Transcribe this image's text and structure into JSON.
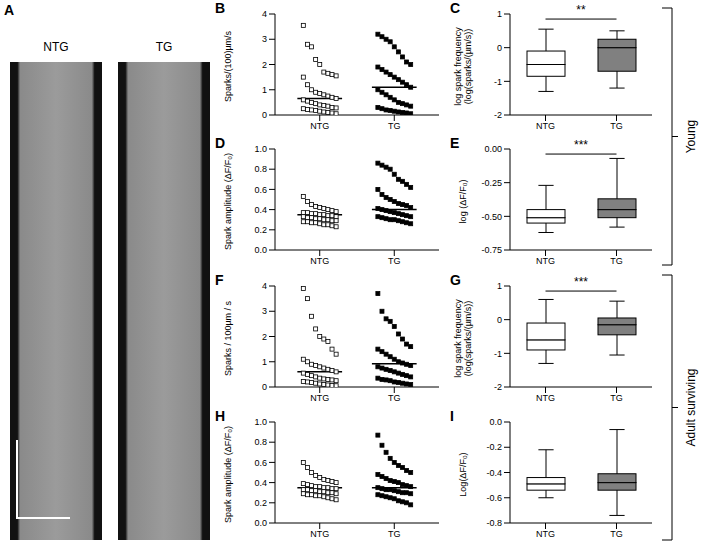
{
  "image_panel": {
    "panel_label": "A",
    "labels": [
      "NTG",
      "TG"
    ]
  },
  "brackets": [
    "Young",
    "Adult surviving"
  ],
  "chart_data": [
    {
      "panel_label": "B",
      "type": "dotplot",
      "ylabel": [
        "Sparks/(100)µm/s"
      ],
      "ylim": [
        0,
        4
      ],
      "yticks": [
        0,
        1,
        2,
        3,
        4
      ],
      "groups": [
        {
          "name": "NTG",
          "marker": "open_square",
          "color": "#000000",
          "mean": 0.65,
          "values": [
            3.55,
            2.8,
            2.7,
            2.2,
            2.0,
            1.7,
            1.65,
            1.6,
            1.55,
            1.5,
            1.2,
            1.0,
            0.9,
            0.85,
            0.8,
            0.75,
            0.7,
            0.65,
            0.6,
            0.55,
            0.5,
            0.45,
            0.4,
            0.38,
            0.35,
            0.3,
            0.28,
            0.25,
            0.22,
            0.2,
            0.18,
            0.15,
            0.12,
            0.1,
            0.08,
            0.05
          ]
        },
        {
          "name": "TG",
          "marker": "filled_square",
          "color": "#000000",
          "mean": 1.1,
          "values": [
            3.2,
            3.1,
            3.0,
            2.9,
            2.7,
            2.5,
            2.3,
            2.1,
            2.0,
            1.9,
            1.8,
            1.7,
            1.6,
            1.5,
            1.4,
            1.3,
            1.2,
            1.1,
            1.0,
            0.9,
            0.8,
            0.7,
            0.6,
            0.5,
            0.45,
            0.4,
            0.35,
            0.3,
            0.25,
            0.2,
            0.18,
            0.15,
            0.12,
            0.1,
            0.08,
            0.05
          ]
        }
      ]
    },
    {
      "panel_label": "C",
      "type": "box",
      "ylabel": [
        "log spark frequency",
        "(log(sparks/(µm/s))"
      ],
      "ylim": [
        -2,
        1
      ],
      "yticks": [
        -2,
        -1,
        0,
        1
      ],
      "annotation": "**",
      "groups": [
        {
          "name": "NTG",
          "color": "#ffffff",
          "min": -1.3,
          "q1": -0.85,
          "median": -0.5,
          "q3": -0.1,
          "max": 0.55
        },
        {
          "name": "TG",
          "color": "#808080",
          "min": -1.2,
          "q1": -0.7,
          "median": 0.0,
          "q3": 0.25,
          "max": 0.5
        }
      ]
    },
    {
      "panel_label": "D",
      "type": "dotplot",
      "ylabel": [
        "Spark amplitude (ΔF/F₀)"
      ],
      "ylim": [
        0,
        1
      ],
      "yticks": [
        {
          "value": 0,
          "label": "0.0"
        },
        0.2,
        0.4,
        0.6,
        0.8,
        {
          "value": 1,
          "label": "1.0"
        }
      ],
      "groups": [
        {
          "name": "NTG",
          "marker": "open_square",
          "color": "#000000",
          "mean": 0.35,
          "values": [
            0.53,
            0.48,
            0.45,
            0.43,
            0.42,
            0.41,
            0.4,
            0.39,
            0.38,
            0.37,
            0.37,
            0.36,
            0.36,
            0.35,
            0.35,
            0.34,
            0.34,
            0.33,
            0.33,
            0.32,
            0.32,
            0.31,
            0.31,
            0.3,
            0.3,
            0.29,
            0.29,
            0.28,
            0.28,
            0.27,
            0.27,
            0.26,
            0.25,
            0.25,
            0.24,
            0.23
          ]
        },
        {
          "name": "TG",
          "marker": "filled_square",
          "color": "#000000",
          "mean": 0.4,
          "values": [
            0.86,
            0.84,
            0.82,
            0.8,
            0.75,
            0.7,
            0.68,
            0.65,
            0.62,
            0.6,
            0.55,
            0.52,
            0.5,
            0.48,
            0.46,
            0.45,
            0.44,
            0.42,
            0.41,
            0.4,
            0.39,
            0.38,
            0.37,
            0.36,
            0.35,
            0.34,
            0.33,
            0.33,
            0.32,
            0.31,
            0.3,
            0.3,
            0.29,
            0.28,
            0.27,
            0.26
          ]
        }
      ]
    },
    {
      "panel_label": "E",
      "type": "box",
      "ylabel": [
        "log (ΔF/F₀)"
      ],
      "ylim": [
        -0.75,
        0
      ],
      "yticks": [
        {
          "value": -0.75,
          "label": "-0.75"
        },
        {
          "value": -0.5,
          "label": "-0.50"
        },
        {
          "value": -0.25,
          "label": "-0.25"
        },
        {
          "value": 0,
          "label": "0.00"
        }
      ],
      "annotation": "***",
      "groups": [
        {
          "name": "NTG",
          "color": "#ffffff",
          "min": -0.62,
          "q1": -0.55,
          "median": -0.51,
          "q3": -0.45,
          "max": -0.27
        },
        {
          "name": "TG",
          "color": "#808080",
          "min": -0.58,
          "q1": -0.51,
          "median": -0.45,
          "q3": -0.37,
          "max": -0.07
        }
      ]
    },
    {
      "panel_label": "F",
      "type": "dotplot",
      "ylabel": [
        "Sparks / 100µm / s"
      ],
      "ylim": [
        0,
        4
      ],
      "yticks": [
        0,
        1,
        2,
        3,
        4
      ],
      "groups": [
        {
          "name": "NTG",
          "marker": "open_square",
          "color": "#000000",
          "mean": 0.6,
          "values": [
            3.9,
            3.5,
            2.8,
            2.3,
            2.0,
            1.9,
            1.8,
            1.5,
            1.3,
            1.1,
            1.0,
            0.9,
            0.85,
            0.8,
            0.75,
            0.7,
            0.65,
            0.6,
            0.55,
            0.5,
            0.45,
            0.4,
            0.35,
            0.32,
            0.3,
            0.28,
            0.25,
            0.22,
            0.2,
            0.18,
            0.15,
            0.12,
            0.1,
            0.08,
            0.06,
            0.05
          ]
        },
        {
          "name": "TG",
          "marker": "filled_square",
          "color": "#000000",
          "mean": 0.92,
          "values": [
            3.7,
            3.0,
            2.7,
            2.6,
            2.4,
            2.1,
            1.9,
            1.7,
            1.6,
            1.5,
            1.4,
            1.3,
            1.2,
            1.1,
            1.0,
            0.95,
            0.9,
            0.85,
            0.8,
            0.75,
            0.7,
            0.65,
            0.6,
            0.55,
            0.5,
            0.45,
            0.4,
            0.35,
            0.3,
            0.28,
            0.25,
            0.2,
            0.18,
            0.15,
            0.12,
            0.1
          ]
        }
      ]
    },
    {
      "panel_label": "G",
      "type": "box",
      "ylabel": [
        "log spark frequency",
        "(log(sparks/(µm/s))"
      ],
      "ylim": [
        -2,
        1
      ],
      "yticks": [
        -2,
        -1,
        0,
        1
      ],
      "annotation": "***",
      "groups": [
        {
          "name": "NTG",
          "color": "#ffffff",
          "min": -1.3,
          "q1": -0.9,
          "median": -0.6,
          "q3": -0.1,
          "max": 0.6
        },
        {
          "name": "TG",
          "color": "#808080",
          "min": -1.05,
          "q1": -0.45,
          "median": -0.15,
          "q3": 0.05,
          "max": 0.55
        }
      ]
    },
    {
      "panel_label": "H",
      "type": "dotplot",
      "ylabel": [
        "Spark amplitude (ΔF/F₀)"
      ],
      "ylim": [
        0,
        1
      ],
      "yticks": [
        {
          "value": 0,
          "label": "0.0"
        },
        0.2,
        0.4,
        0.6,
        0.8,
        {
          "value": 1,
          "label": "1.0"
        }
      ],
      "groups": [
        {
          "name": "NTG",
          "marker": "open_square",
          "color": "#000000",
          "mean": 0.35,
          "values": [
            0.6,
            0.55,
            0.5,
            0.47,
            0.45,
            0.43,
            0.42,
            0.41,
            0.4,
            0.39,
            0.38,
            0.37,
            0.36,
            0.36,
            0.35,
            0.35,
            0.34,
            0.34,
            0.33,
            0.33,
            0.32,
            0.32,
            0.31,
            0.31,
            0.3,
            0.3,
            0.29,
            0.29,
            0.28,
            0.28,
            0.27,
            0.27,
            0.26,
            0.25,
            0.24,
            0.23
          ]
        },
        {
          "name": "TG",
          "marker": "filled_square",
          "color": "#000000",
          "mean": 0.35,
          "values": [
            0.87,
            0.77,
            0.7,
            0.64,
            0.6,
            0.57,
            0.55,
            0.52,
            0.5,
            0.48,
            0.46,
            0.44,
            0.42,
            0.41,
            0.4,
            0.38,
            0.37,
            0.36,
            0.35,
            0.34,
            0.33,
            0.33,
            0.32,
            0.31,
            0.3,
            0.3,
            0.29,
            0.28,
            0.27,
            0.26,
            0.25,
            0.24,
            0.22,
            0.21,
            0.2,
            0.18
          ]
        }
      ]
    },
    {
      "panel_label": "I",
      "type": "box",
      "ylabel": [
        "Log(ΔF/F₀)"
      ],
      "ylim": [
        -0.8,
        0
      ],
      "yticks": [
        -0.8,
        -0.6,
        -0.4,
        -0.2,
        {
          "value": 0,
          "label": "0.0"
        }
      ],
      "groups": [
        {
          "name": "NTG",
          "color": "#ffffff",
          "min": -0.6,
          "q1": -0.54,
          "median": -0.49,
          "q3": -0.44,
          "max": -0.22
        },
        {
          "name": "TG",
          "color": "#808080",
          "min": -0.74,
          "q1": -0.54,
          "median": -0.48,
          "q3": -0.41,
          "max": -0.06
        }
      ]
    }
  ]
}
